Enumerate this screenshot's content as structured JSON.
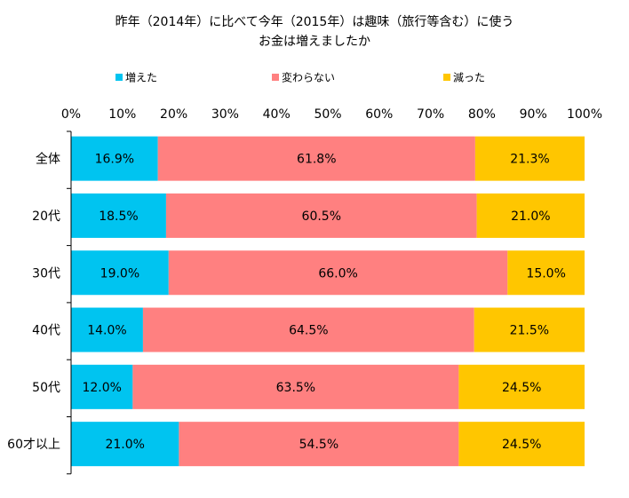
{
  "chart_data": {
    "type": "bar",
    "orientation": "horizontal-stacked-100",
    "title_line1": "昨年（2014年）に比べて今年（2015年）は趣味（旅行等含む）に使う",
    "title_line2": "お金は増えましたか",
    "legend_position": "top",
    "categories": [
      "全体",
      "20代",
      "30代",
      "40代",
      "50代",
      "60才以上"
    ],
    "series": [
      {
        "name": "増えた",
        "color": "#00C4F0",
        "values": [
          16.9,
          18.5,
          19.0,
          14.0,
          12.0,
          21.0
        ]
      },
      {
        "name": "変わらない",
        "color": "#FF8080",
        "values": [
          61.8,
          60.5,
          66.0,
          64.5,
          63.5,
          54.5
        ]
      },
      {
        "name": "減った",
        "color": "#FFC600",
        "values": [
          21.3,
          21.0,
          15.0,
          21.5,
          24.5,
          24.5
        ]
      }
    ],
    "x_ticks": [
      "0%",
      "10%",
      "20%",
      "30%",
      "40%",
      "50%",
      "60%",
      "70%",
      "80%",
      "90%",
      "100%"
    ],
    "xlim": [
      0,
      100
    ],
    "grid": false
  }
}
